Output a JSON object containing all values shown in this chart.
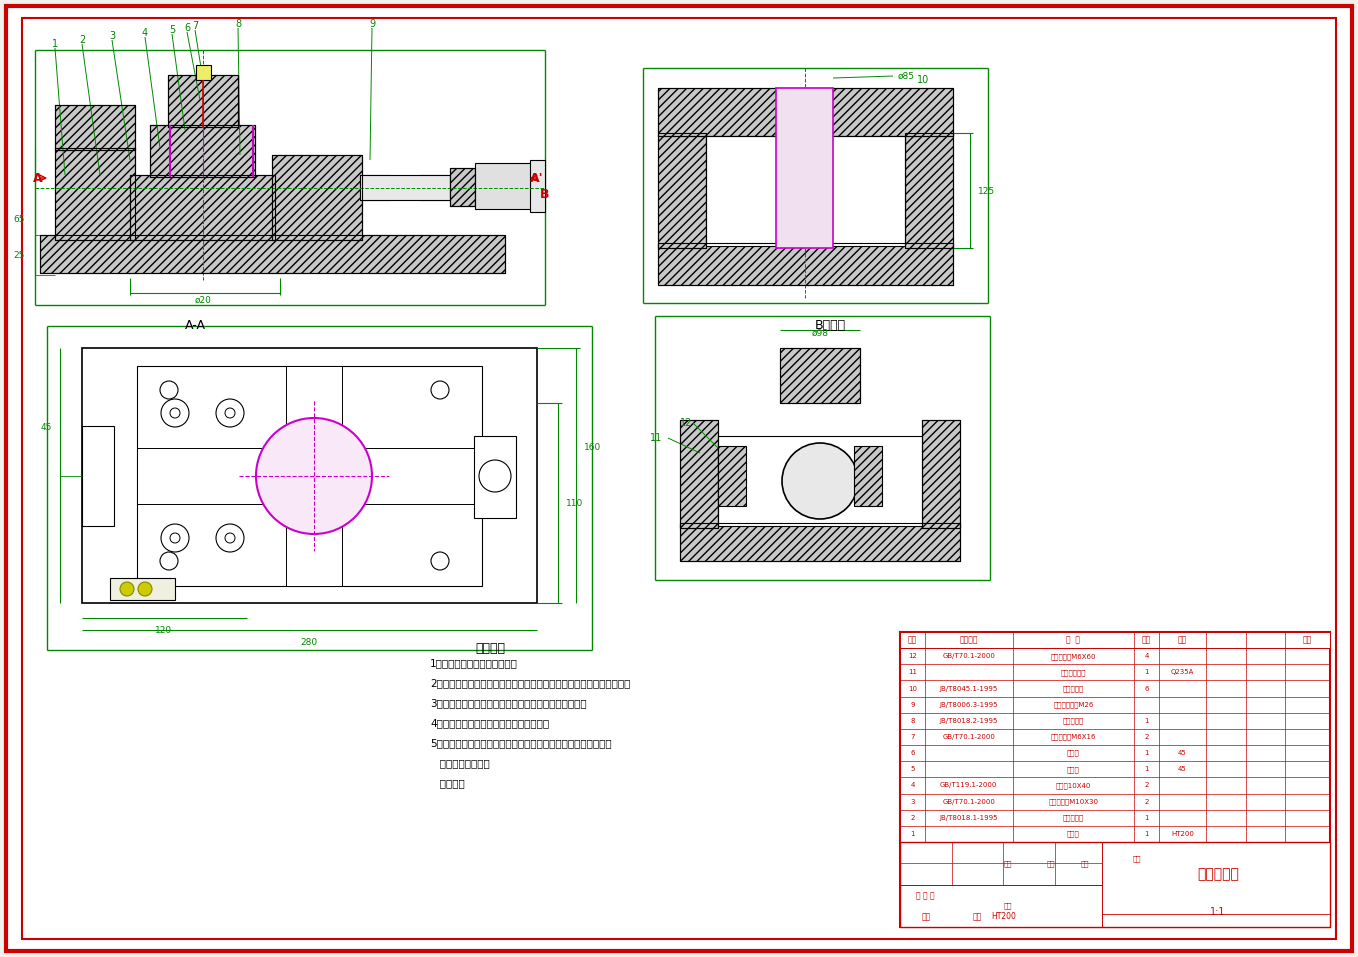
{
  "bg_color": "#f0f0ec",
  "border_color": "#cc0000",
  "line_color": "#000000",
  "green_color": "#008800",
  "red_color": "#cc0000",
  "magenta_color": "#cc00cc",
  "title": "夹具装配图",
  "technical_requirements": [
    "技术要求",
    "1、各密封件装配前必须浸透油",
    "2、进行装配的零件及部件，均必须具有检验部门的合格证方能进行装配",
    "3、装配前对零部件的主要配合尺寸进行精度的复查工作",
    "4、装配过程中不允许磕、碰、划伤和锈蚀",
    "5、组装前严格检查并清除零件加工时残留的锐角、毛刺和异物，",
    "   保证密封件装入时",
    "   不被擦伤"
  ],
  "bom_rows": [
    [
      "12",
      "GB/T70.1-2000",
      "内六角螺钉M6X60",
      "4",
      "",
      "",
      ""
    ],
    [
      "11",
      "",
      "活动型快支架",
      "1",
      "Q235A",
      "",
      ""
    ],
    [
      "10",
      "JB/T8045.1-1995",
      "固定式钻套",
      "6",
      "",
      "",
      ""
    ],
    [
      "9",
      "JB/T8006.3-1995",
      "固定字钻衬套M26",
      "",
      "",
      "",
      ""
    ],
    [
      "8",
      "JB/T8018.2-1995",
      "活动型塞头",
      "1",
      "",
      "",
      ""
    ],
    [
      "7",
      "GB/T70.1-2000",
      "内六角螺钉M6X16",
      "2",
      "",
      "",
      ""
    ],
    [
      "6",
      "",
      "钻模板",
      "1",
      "45",
      "",
      ""
    ],
    [
      "5",
      "",
      "支架杆",
      "1",
      "45",
      "",
      ""
    ],
    [
      "4",
      "GB/T119.1-2000",
      "圆柱销10X40",
      "2",
      "",
      "",
      ""
    ],
    [
      "3",
      "GB/T70.1-2000",
      "内六角螺钉M10X30",
      "2",
      "",
      "",
      ""
    ],
    [
      "2",
      "JB/T8018.1-1995",
      "固定型塞头",
      "1",
      "",
      "",
      ""
    ],
    [
      "1",
      "",
      "夹具体",
      "1",
      "HT200",
      "",
      ""
    ]
  ]
}
